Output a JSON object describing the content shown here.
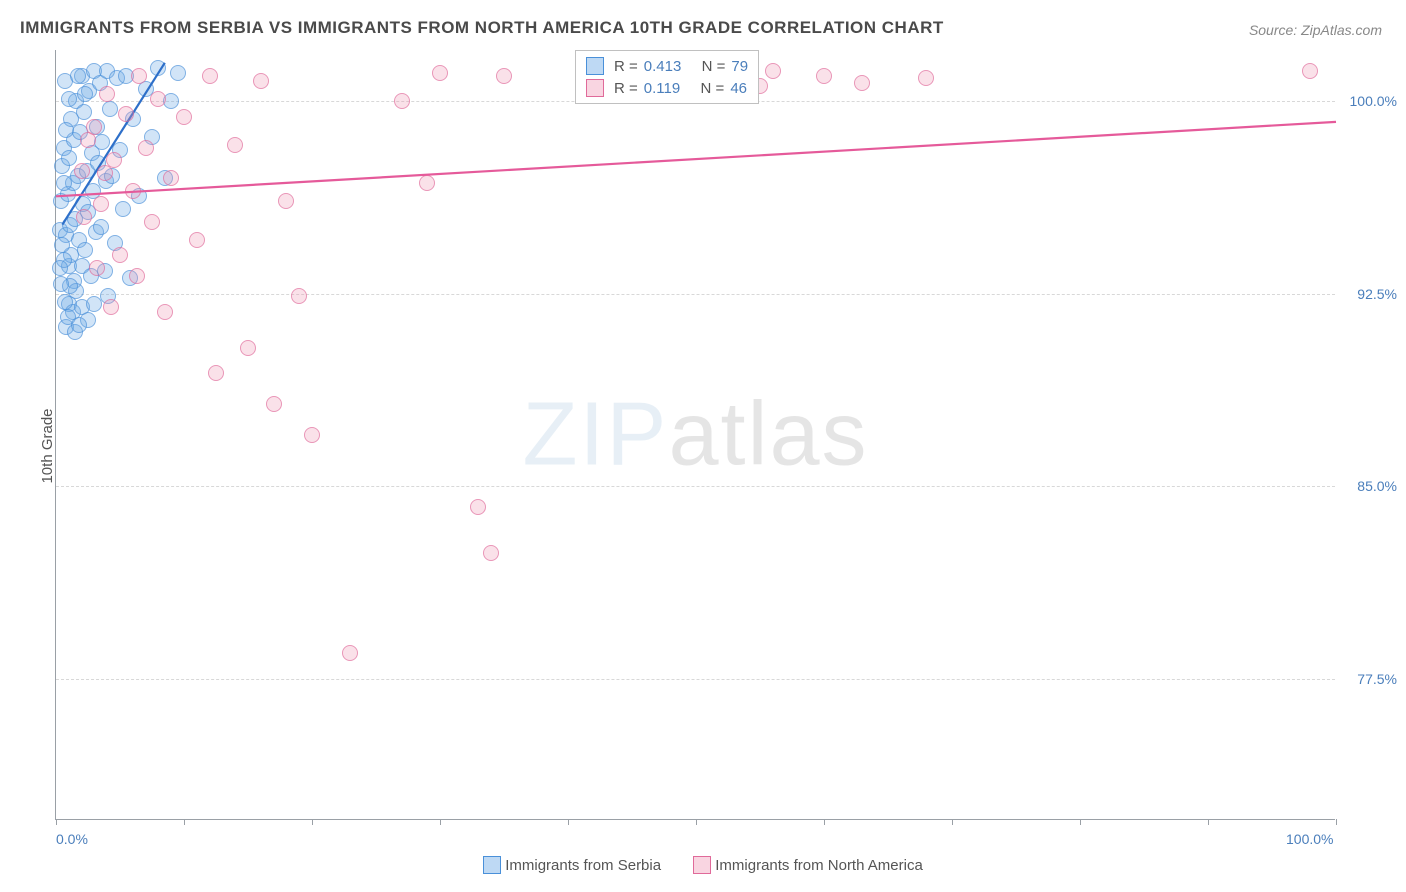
{
  "title": "IMMIGRANTS FROM SERBIA VS IMMIGRANTS FROM NORTH AMERICA 10TH GRADE CORRELATION CHART",
  "source": "Source: ZipAtlas.com",
  "ylabel": "10th Grade",
  "watermark_a": "ZIP",
  "watermark_b": "atlas",
  "chart": {
    "type": "scatter",
    "background_color": "#ffffff",
    "grid_color": "#d8d8d8",
    "axis_color": "#9aa0a6",
    "label_color": "#4a7ebb",
    "title_fontsize": 17,
    "label_fontsize": 15,
    "tick_fontsize": 14,
    "xlim": [
      0,
      100
    ],
    "ylim": [
      72,
      102
    ],
    "xaxis_labels": [
      {
        "x": 0,
        "text": "0.0%",
        "anchor": "start"
      },
      {
        "x": 100,
        "text": "100.0%",
        "anchor": "end"
      }
    ],
    "xticks": [
      0,
      10,
      20,
      30,
      40,
      50,
      60,
      70,
      80,
      90,
      100
    ],
    "yticks": [
      {
        "y": 77.5,
        "label": "77.5%"
      },
      {
        "y": 85.0,
        "label": "85.0%"
      },
      {
        "y": 92.5,
        "label": "92.5%"
      },
      {
        "y": 100.0,
        "label": "100.0%"
      }
    ],
    "marker_radius": 8,
    "series": [
      {
        "id": "serbia",
        "label": "Immigrants from Serbia",
        "color_fill": "rgba(110,170,230,0.45)",
        "color_stroke": "#4a90d9",
        "R": "0.413",
        "N": "79",
        "trend": {
          "x1": 0.5,
          "y1": 95.2,
          "x2": 8.5,
          "y2": 101.5,
          "color": "#2d6fc9"
        },
        "points": [
          [
            0.3,
            95.0
          ],
          [
            0.4,
            96.1
          ],
          [
            0.5,
            97.5
          ],
          [
            0.6,
            98.2
          ],
          [
            0.7,
            100.8
          ],
          [
            0.8,
            94.8
          ],
          [
            0.9,
            96.4
          ],
          [
            1.0,
            93.6
          ],
          [
            1.0,
            97.8
          ],
          [
            1.1,
            95.2
          ],
          [
            1.2,
            99.3
          ],
          [
            1.2,
            94.0
          ],
          [
            1.3,
            96.8
          ],
          [
            1.4,
            93.0
          ],
          [
            1.4,
            98.5
          ],
          [
            1.5,
            95.4
          ],
          [
            1.6,
            100.0
          ],
          [
            1.6,
            92.6
          ],
          [
            1.7,
            97.1
          ],
          [
            1.8,
            94.6
          ],
          [
            1.9,
            98.8
          ],
          [
            2.0,
            101.0
          ],
          [
            2.0,
            93.6
          ],
          [
            2.1,
            96.0
          ],
          [
            2.2,
            99.6
          ],
          [
            2.3,
            94.2
          ],
          [
            2.4,
            97.3
          ],
          [
            2.5,
            95.7
          ],
          [
            2.6,
            100.4
          ],
          [
            2.7,
            93.2
          ],
          [
            2.8,
            98.0
          ],
          [
            2.9,
            96.5
          ],
          [
            3.0,
            101.2
          ],
          [
            3.1,
            94.9
          ],
          [
            3.2,
            99.0
          ],
          [
            3.3,
            97.6
          ],
          [
            3.4,
            100.7
          ],
          [
            3.5,
            95.1
          ],
          [
            3.6,
            98.4
          ],
          [
            3.8,
            93.4
          ],
          [
            3.9,
            96.9
          ],
          [
            4.0,
            101.2
          ],
          [
            4.1,
            92.4
          ],
          [
            4.2,
            99.7
          ],
          [
            4.4,
            97.1
          ],
          [
            4.6,
            94.5
          ],
          [
            4.8,
            100.9
          ],
          [
            5.0,
            98.1
          ],
          [
            5.2,
            95.8
          ],
          [
            5.5,
            101.0
          ],
          [
            5.8,
            93.1
          ],
          [
            6.0,
            99.3
          ],
          [
            6.5,
            96.3
          ],
          [
            7.0,
            100.5
          ],
          [
            7.5,
            98.6
          ],
          [
            8.0,
            101.3
          ],
          [
            8.5,
            97.0
          ],
          [
            9.0,
            100.0
          ],
          [
            9.5,
            101.1
          ],
          [
            1.0,
            92.1
          ],
          [
            1.3,
            91.8
          ],
          [
            2.0,
            92.0
          ],
          [
            2.5,
            91.5
          ],
          [
            0.8,
            91.2
          ],
          [
            1.5,
            91.0
          ],
          [
            0.6,
            93.8
          ],
          [
            0.7,
            92.2
          ],
          [
            0.9,
            91.6
          ],
          [
            1.1,
            92.8
          ],
          [
            1.8,
            91.3
          ],
          [
            0.5,
            94.4
          ],
          [
            0.4,
            92.9
          ],
          [
            0.3,
            93.5
          ],
          [
            0.6,
            96.8
          ],
          [
            0.8,
            98.9
          ],
          [
            1.0,
            100.1
          ],
          [
            1.7,
            101.0
          ],
          [
            2.3,
            100.3
          ],
          [
            3.0,
            92.1
          ]
        ]
      },
      {
        "id": "north_america",
        "label": "Immigrants from North America",
        "color_fill": "rgba(240,150,180,0.40)",
        "color_stroke": "#e06a9a",
        "R": "0.119",
        "N": "46",
        "trend": {
          "x1": 0,
          "y1": 96.3,
          "x2": 100,
          "y2": 99.2,
          "color": "#e55a9a"
        },
        "points": [
          [
            2.0,
            97.3
          ],
          [
            3.0,
            99.0
          ],
          [
            3.5,
            96.0
          ],
          [
            4.0,
            100.3
          ],
          [
            4.5,
            97.7
          ],
          [
            5.0,
            94.0
          ],
          [
            5.5,
            99.5
          ],
          [
            6.0,
            96.5
          ],
          [
            6.5,
            101.0
          ],
          [
            7.0,
            98.2
          ],
          [
            7.5,
            95.3
          ],
          [
            8.0,
            100.1
          ],
          [
            8.5,
            91.8
          ],
          [
            9.0,
            97.0
          ],
          [
            10.0,
            99.4
          ],
          [
            11.0,
            94.6
          ],
          [
            12.0,
            101.0
          ],
          [
            12.5,
            89.4
          ],
          [
            14.0,
            98.3
          ],
          [
            15.0,
            90.4
          ],
          [
            16.0,
            100.8
          ],
          [
            17.0,
            88.2
          ],
          [
            18.0,
            96.1
          ],
          [
            19.0,
            92.4
          ],
          [
            20.0,
            87.0
          ],
          [
            23.0,
            78.5
          ],
          [
            27.0,
            100.0
          ],
          [
            29.0,
            96.8
          ],
          [
            30.0,
            101.1
          ],
          [
            33.0,
            84.2
          ],
          [
            34.0,
            82.4
          ],
          [
            35.0,
            101.0
          ],
          [
            48.0,
            101.0
          ],
          [
            52.0,
            100.9
          ],
          [
            55.0,
            100.6
          ],
          [
            56.0,
            101.2
          ],
          [
            60.0,
            101.0
          ],
          [
            63.0,
            100.7
          ],
          [
            68.0,
            100.9
          ],
          [
            98.0,
            101.2
          ],
          [
            3.2,
            93.5
          ],
          [
            4.3,
            92.0
          ],
          [
            2.5,
            98.5
          ],
          [
            3.8,
            97.2
          ],
          [
            2.2,
            95.5
          ],
          [
            6.3,
            93.2
          ]
        ]
      }
    ]
  },
  "legend_top": {
    "rows": [
      {
        "swatch": "blue",
        "r_label": "R =",
        "r_val": "0.413",
        "n_label": "N =",
        "n_val": "79"
      },
      {
        "swatch": "pink",
        "r_label": "R =",
        "r_val": "0.119",
        "n_label": "N =",
        "n_val": "46"
      }
    ]
  },
  "legend_bottom": [
    {
      "swatch": "blue",
      "label": "Immigrants from Serbia"
    },
    {
      "swatch": "pink",
      "label": "Immigrants from North America"
    }
  ]
}
